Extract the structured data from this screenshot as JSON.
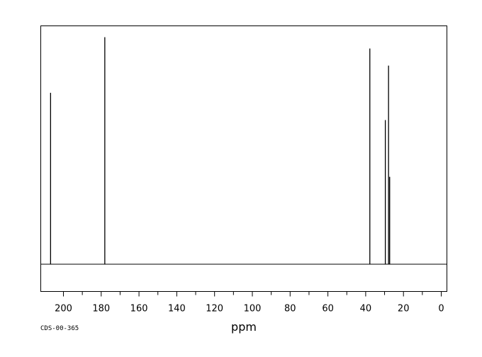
{
  "chart_data": {
    "type": "line",
    "xlabel": "ppm",
    "ylabel": "",
    "xlim": [
      212,
      -3
    ],
    "x_reversed": true,
    "ylim": [
      -0.12,
      1.05
    ],
    "baseline": 0,
    "grid": false,
    "x_ticks_major": [
      200,
      180,
      160,
      140,
      120,
      100,
      80,
      60,
      40,
      20,
      0
    ],
    "x_tick_labels": [
      "200",
      "180",
      "160",
      "140",
      "120",
      "100",
      "80",
      "60",
      "40",
      "20",
      "0"
    ],
    "x_ticks_minor_step": 10,
    "series": [
      {
        "peaks": [
          {
            "ppm": 206.8,
            "intensity": 0.755
          },
          {
            "ppm": 178.1,
            "intensity": 1.0
          },
          {
            "ppm": 37.8,
            "intensity": 0.95
          },
          {
            "ppm": 29.6,
            "intensity": 0.635
          },
          {
            "ppm": 27.9,
            "intensity": 0.875
          },
          {
            "ppm": 27.3,
            "intensity": 0.385
          }
        ]
      }
    ]
  },
  "source_id": "CDS-00-365"
}
